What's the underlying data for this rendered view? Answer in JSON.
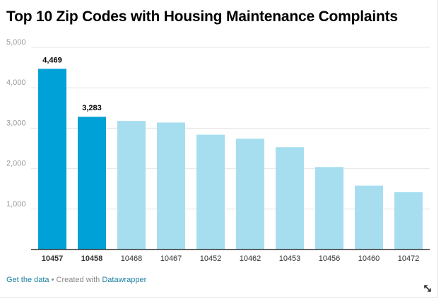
{
  "title": "Top 10 Zip Codes with Housing Maintenance Complaints",
  "footer": {
    "get_data": "Get the data",
    "separator": " • Created with ",
    "datawrapper": "Datawrapper"
  },
  "colors": {
    "highlight": "#00a1d6",
    "default": "#a6def0",
    "grid": "#e5e5e5",
    "axis": "#333333",
    "tick_text": "#999999",
    "label_text": "#333333"
  },
  "chart_data": {
    "type": "bar",
    "title": "Top 10 Zip Codes with Housing Maintenance Complaints",
    "categories": [
      "10457",
      "10458",
      "10468",
      "10467",
      "10452",
      "10462",
      "10453",
      "10456",
      "10460",
      "10472"
    ],
    "values": [
      4469,
      3283,
      3180,
      3140,
      2840,
      2740,
      2530,
      2040,
      1580,
      1420
    ],
    "highlighted": [
      "10457",
      "10458"
    ],
    "data_labels": [
      {
        "category": "10457",
        "text": "4,469"
      },
      {
        "category": "10458",
        "text": "3,283"
      }
    ],
    "ylim": [
      0,
      5000
    ],
    "yticks": [
      1000,
      2000,
      3000,
      4000,
      5000
    ],
    "ytick_labels": [
      "1,000",
      "2,000",
      "3,000",
      "4,000",
      "5,000"
    ],
    "xlabel": "",
    "ylabel": "",
    "grid": true,
    "legend": false
  }
}
